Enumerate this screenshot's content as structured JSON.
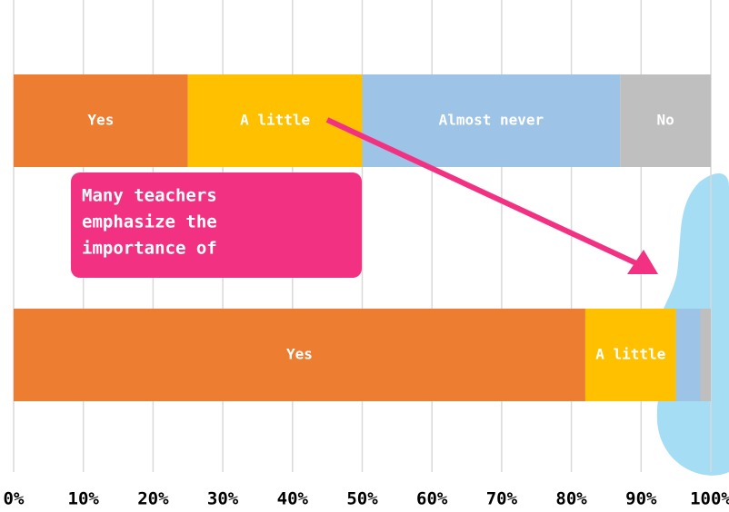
{
  "chart_data": {
    "type": "stacked-bar-horizontal",
    "categories": [
      null,
      null
    ],
    "series": [
      {
        "name": "Yes",
        "color": "#ed7d31",
        "values": [
          25,
          82
        ]
      },
      {
        "name": "A little",
        "color": "#ffc000",
        "values": [
          25,
          13
        ]
      },
      {
        "name": "Almost never",
        "color": "#9dc3e6",
        "values": [
          37,
          3.5
        ]
      },
      {
        "name": "No",
        "color": "#bfbfbf",
        "values": [
          13,
          1.5
        ]
      }
    ],
    "xlim": [
      0,
      100
    ],
    "xticks": [
      {
        "value": 0,
        "label": "0%"
      },
      {
        "value": 10,
        "label": "10%"
      },
      {
        "value": 20,
        "label": "20%"
      },
      {
        "value": 30,
        "label": "30%"
      },
      {
        "value": 40,
        "label": "40%"
      },
      {
        "value": 50,
        "label": "50%"
      },
      {
        "value": 60,
        "label": "60%"
      },
      {
        "value": 70,
        "label": "70%"
      },
      {
        "value": 80,
        "label": "80%"
      },
      {
        "value": 90,
        "label": "90%"
      },
      {
        "value": 100,
        "label": "100%"
      }
    ],
    "grid": true,
    "annotation": [
      "Many teachers",
      "emphasize the",
      "importance of"
    ]
  }
}
